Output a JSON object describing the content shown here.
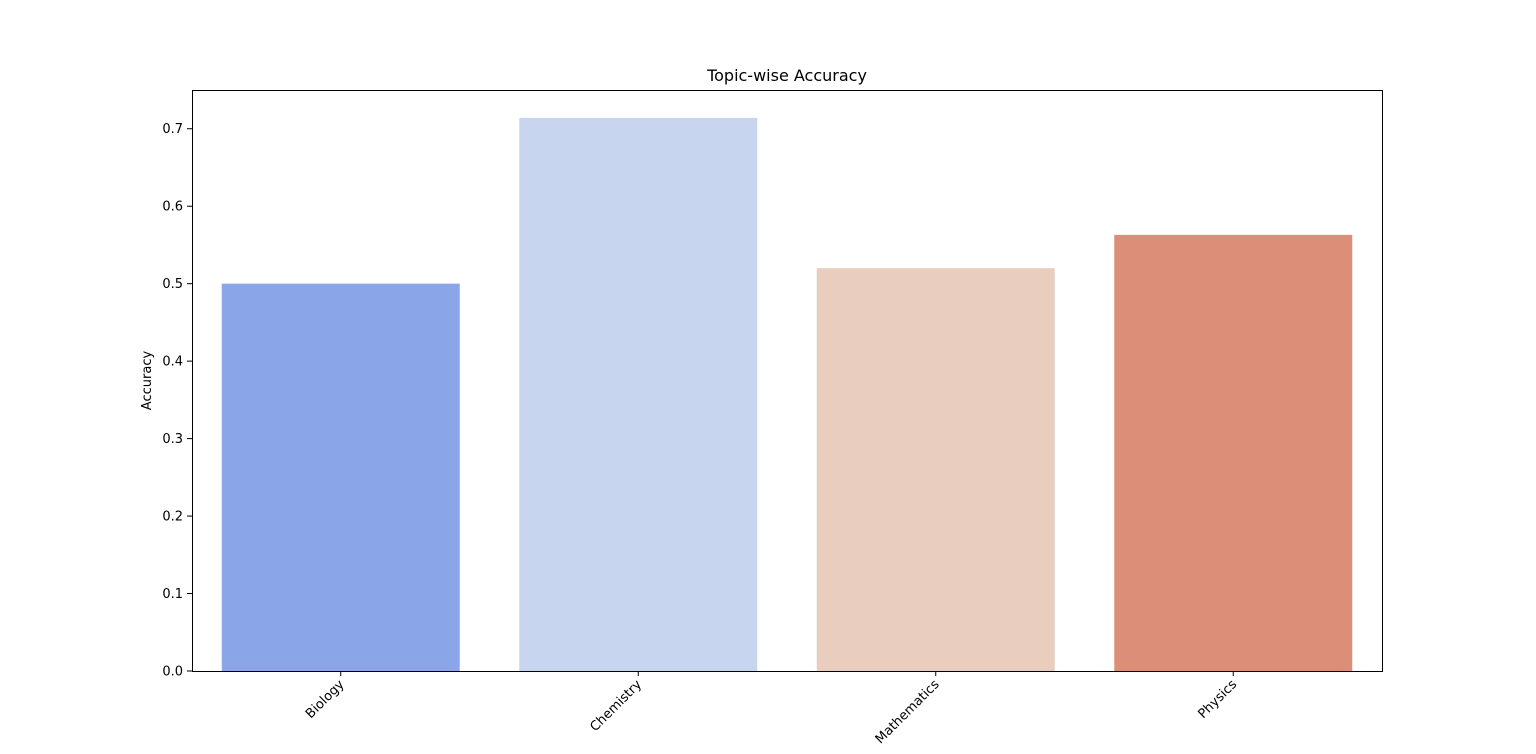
{
  "chart_data": {
    "type": "bar",
    "title": "Topic-wise Accuracy",
    "xlabel": "",
    "ylabel": "Accuracy",
    "categories": [
      "Biology",
      "Chemistry",
      "Mathematics",
      "Physics"
    ],
    "values": [
      0.5,
      0.714,
      0.52,
      0.563
    ],
    "colors": [
      "#8aa5e8",
      "#c7d5ef",
      "#e9cdbf",
      "#dc8e78"
    ],
    "ylim": [
      0,
      0.75
    ],
    "yticks": [
      0.0,
      0.1,
      0.2,
      0.3,
      0.4,
      0.5,
      0.6,
      0.7
    ],
    "ytick_labels": [
      "0.0",
      "0.1",
      "0.2",
      "0.3",
      "0.4",
      "0.5",
      "0.6",
      "0.7"
    ],
    "xtick_rotation": 45,
    "grid": false,
    "legend": "none"
  }
}
